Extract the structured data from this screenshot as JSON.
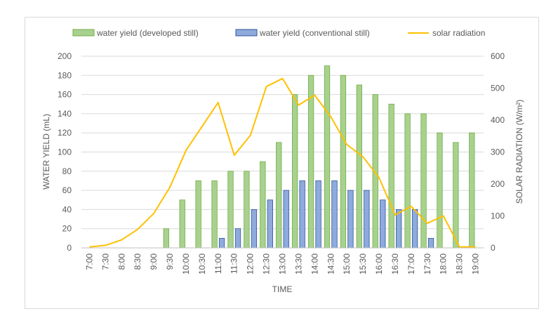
{
  "chart_data": {
    "type": "bar",
    "categories": [
      "7:00",
      "7:30",
      "8:00",
      "8:30",
      "9:00",
      "9:30",
      "10:00",
      "10:30",
      "11:00",
      "11:30",
      "12:00",
      "12:30",
      "13:00",
      "13:30",
      "14:00",
      "14:30",
      "15:00",
      "15:30",
      "16:00",
      "16:30",
      "17:00",
      "17:30",
      "18:00",
      "18:30",
      "19:00"
    ],
    "series": [
      {
        "name": "water yield (developed still)",
        "kind": "bar",
        "axis": "left",
        "color": "#a9d18e",
        "border": "#70ad47",
        "values": [
          0,
          0,
          0,
          0,
          0,
          20,
          50,
          70,
          70,
          80,
          80,
          90,
          110,
          160,
          180,
          190,
          180,
          170,
          160,
          150,
          140,
          140,
          120,
          110,
          120
        ]
      },
      {
        "name": "water yield (conventional still)",
        "kind": "bar",
        "axis": "left",
        "color": "#8faadc",
        "border": "#2f5597",
        "values": [
          0,
          0,
          0,
          0,
          0,
          0,
          0,
          0,
          10,
          20,
          40,
          50,
          60,
          70,
          70,
          70,
          60,
          60,
          50,
          40,
          40,
          10,
          0,
          0,
          0
        ]
      },
      {
        "name": "solar radiation",
        "kind": "line",
        "axis": "right",
        "color": "#ffc000",
        "values": [
          3,
          8,
          25,
          58,
          108,
          190,
          305,
          380,
          455,
          290,
          352,
          505,
          530,
          447,
          478,
          410,
          323,
          285,
          220,
          103,
          130,
          77,
          100,
          3,
          3
        ]
      }
    ],
    "xlabel": "TIME",
    "ylabel": "WATER YIELD (mL)",
    "y2label": "SOLAR RADIATION (W/m²)",
    "ylim": [
      0,
      200
    ],
    "yticks": [
      0,
      20,
      40,
      60,
      80,
      100,
      120,
      140,
      160,
      180,
      200
    ],
    "y2lim": [
      0,
      600
    ],
    "y2ticks": [
      0,
      100,
      200,
      300,
      400,
      500,
      600
    ],
    "legend_position": "top"
  }
}
